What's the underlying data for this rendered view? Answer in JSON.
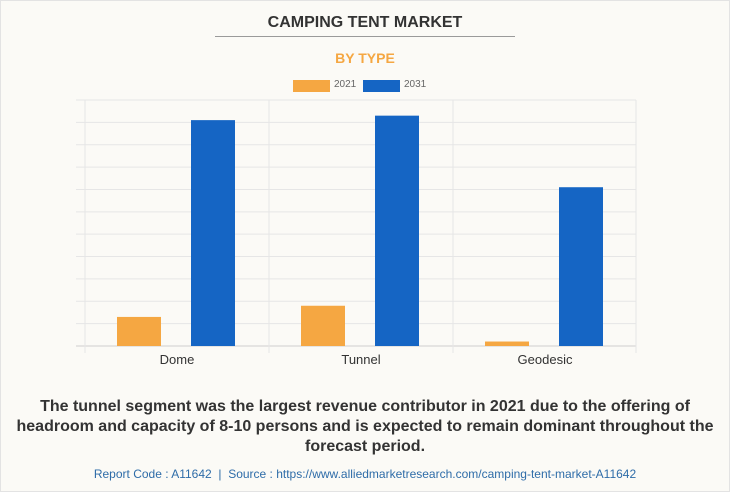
{
  "chart_data": {
    "type": "bar",
    "title": "CAMPING TENT MARKET",
    "subtitle": "BY TYPE",
    "categories": [
      "Dome",
      "Tunnel",
      "Geodesic"
    ],
    "series": [
      {
        "name": "2021",
        "color": "#f5a742",
        "values": [
          1.3,
          1.8,
          0.2
        ]
      },
      {
        "name": "2031",
        "color": "#1565c4",
        "values": [
          10.1,
          10.3,
          7.1
        ]
      }
    ],
    "ylim": [
      0,
      11
    ],
    "grid": true,
    "legend": "top-center",
    "xlabel": "",
    "ylabel": ""
  },
  "summary": "The tunnel segment was the largest revenue contributor in 2021 due to the offering of headroom and capacity of 8-10 persons and is expected to remain dominant throughout the forecast period.",
  "footer": {
    "report_code": "Report Code : A11642",
    "separator": "|",
    "source": "Source : https://www.alliedmarketresearch.com/camping-tent-market-A11642"
  }
}
